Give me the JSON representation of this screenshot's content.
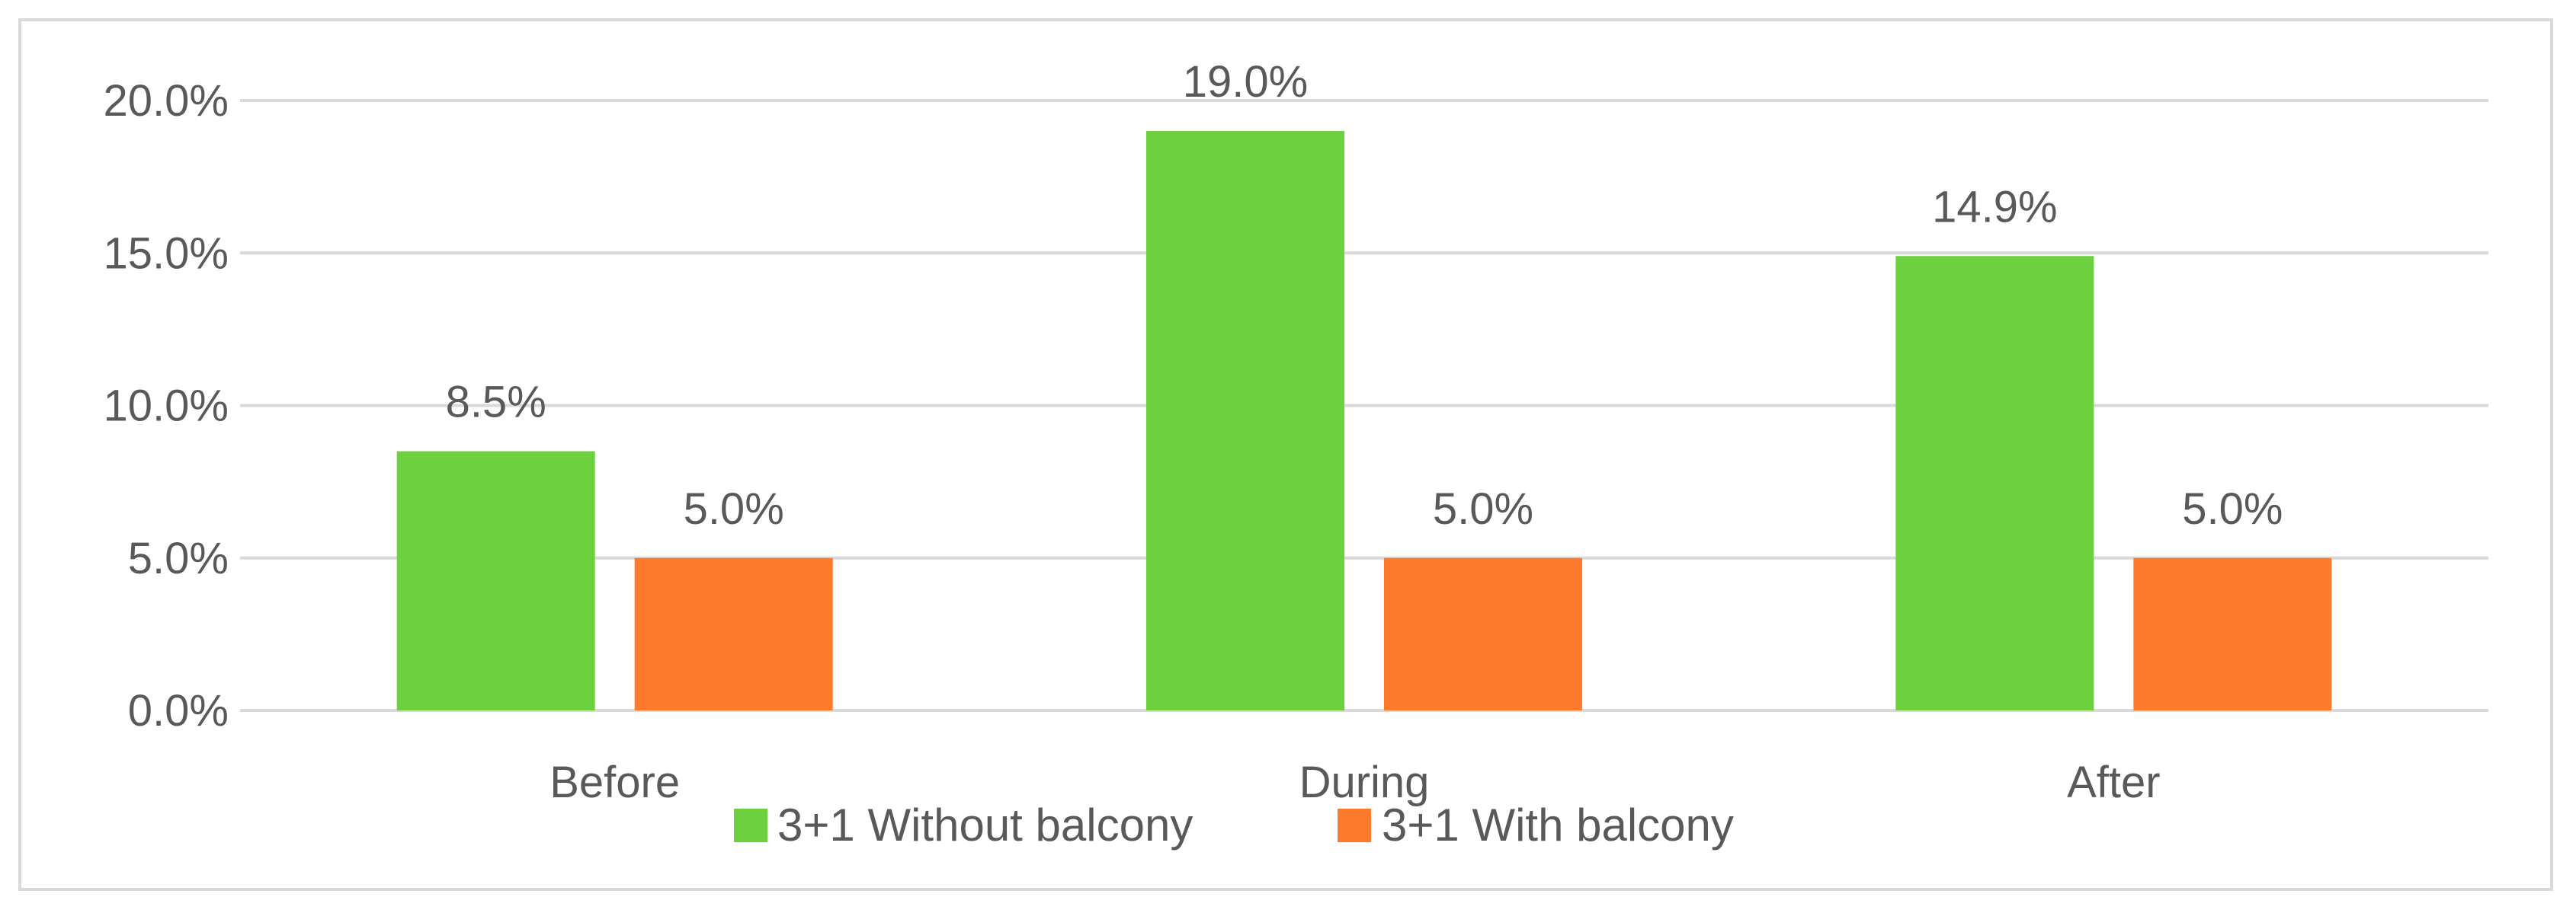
{
  "chart_data": {
    "type": "bar",
    "categories": [
      "Before",
      "During",
      "After"
    ],
    "series": [
      {
        "name": "3+1 Without balcony",
        "values": [
          8.5,
          19.0,
          14.9
        ],
        "color": "#6dd13f"
      },
      {
        "name": "3+1 With balcony",
        "values": [
          5.0,
          5.0,
          5.0
        ],
        "color": "#fe7a2c"
      }
    ],
    "data_labels": [
      [
        "8.5%",
        "19.0%",
        "14.9%"
      ],
      [
        "5.0%",
        "5.0%",
        "5.0%"
      ]
    ],
    "y_ticks": [
      "0.0%",
      "5.0%",
      "10.0%",
      "15.0%",
      "20.0%"
    ],
    "y_tick_values": [
      0,
      5,
      10,
      15,
      20
    ],
    "ylim": [
      0,
      20
    ],
    "title": "",
    "xlabel": "",
    "ylabel": "",
    "grid": true,
    "legend_position": "bottom",
    "gridline_color": "#d9d9d9",
    "text_color": "#595959"
  }
}
